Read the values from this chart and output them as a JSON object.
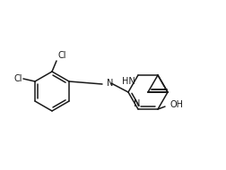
{
  "bg": "#ffffff",
  "lc": "#1a1a1a",
  "lw": 1.1,
  "fs": 7.0,
  "fig_w": 2.53,
  "fig_h": 1.9,
  "dpi": 100,
  "labels": {
    "Cl_top": "Cl",
    "Cl_left": "Cl",
    "N_im": "N",
    "N_q": "N",
    "NH": "HN",
    "OH": "OH"
  }
}
